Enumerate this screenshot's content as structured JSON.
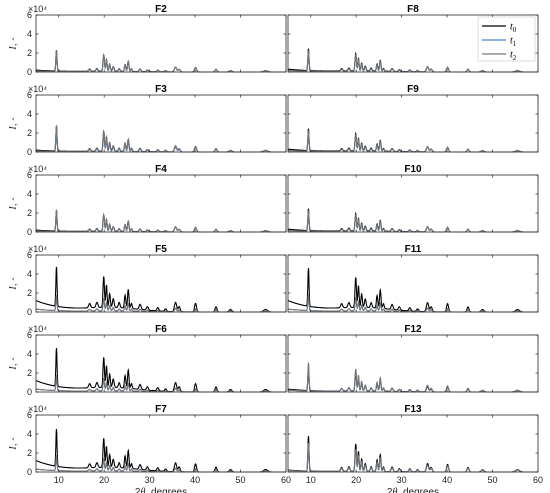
{
  "figure": {
    "xlabel": "2θ, degrees",
    "ylabel": "I, -",
    "exponent": "×10⁴",
    "legend": [
      "t0",
      "t1",
      "t2"
    ]
  },
  "colors": {
    "t0": "#000000",
    "t1": "#4a7fd4",
    "t2": "#777777"
  },
  "chart_data": [
    {
      "type": "line",
      "title": "F2",
      "xlim": [
        5,
        60
      ],
      "ylim": [
        0,
        6
      ],
      "xticks": [
        10,
        20,
        30,
        40,
        50,
        60
      ],
      "yticks": [
        0,
        2,
        4,
        6
      ],
      "xlabel": "",
      "ylabel": "I, -",
      "series": [
        {
          "name": "t0",
          "scale": 0.95,
          "base": 0.2
        },
        {
          "name": "t1",
          "scale": 0.9,
          "base": 0.1
        },
        {
          "name": "t2",
          "scale": 0.95,
          "base": 0.1
        }
      ]
    },
    {
      "type": "line",
      "title": "F8",
      "xlim": [
        5,
        60
      ],
      "ylim": [
        0,
        6
      ],
      "xticks": [
        10,
        20,
        30,
        40,
        50,
        60
      ],
      "yticks": [
        0,
        2,
        4,
        6
      ],
      "xlabel": "",
      "ylabel": "",
      "series": [
        {
          "name": "t0",
          "scale": 1.0,
          "base": 0.3
        },
        {
          "name": "t1",
          "scale": 0.9,
          "base": 0.15
        },
        {
          "name": "t2",
          "scale": 0.95,
          "base": 0.15
        }
      ]
    },
    {
      "type": "line",
      "title": "F3",
      "xlim": [
        5,
        60
      ],
      "ylim": [
        0,
        6
      ],
      "xticks": [
        10,
        20,
        30,
        40,
        50,
        60
      ],
      "yticks": [
        0,
        2,
        4,
        6
      ],
      "xlabel": "",
      "ylabel": "I, -",
      "series": [
        {
          "name": "t0",
          "scale": 1.15,
          "base": 0.2
        },
        {
          "name": "t1",
          "scale": 0.85,
          "base": 0.1
        },
        {
          "name": "t2",
          "scale": 1.2,
          "base": 0.1
        }
      ]
    },
    {
      "type": "line",
      "title": "F9",
      "xlim": [
        5,
        60
      ],
      "ylim": [
        0,
        6
      ],
      "xticks": [
        10,
        20,
        30,
        40,
        50,
        60
      ],
      "yticks": [
        0,
        2,
        4,
        6
      ],
      "xlabel": "",
      "ylabel": "",
      "series": [
        {
          "name": "t0",
          "scale": 1.0,
          "base": 0.3
        },
        {
          "name": "t1",
          "scale": 0.9,
          "base": 0.15
        },
        {
          "name": "t2",
          "scale": 0.95,
          "base": 0.15
        }
      ]
    },
    {
      "type": "line",
      "title": "F4",
      "xlim": [
        5,
        60
      ],
      "ylim": [
        0,
        6
      ],
      "xticks": [
        10,
        20,
        30,
        40,
        50,
        60
      ],
      "yticks": [
        0,
        2,
        4,
        6
      ],
      "xlabel": "",
      "ylabel": "I, -",
      "series": [
        {
          "name": "t0",
          "scale": 0.95,
          "base": 0.2
        },
        {
          "name": "t1",
          "scale": 0.9,
          "base": 0.1
        },
        {
          "name": "t2",
          "scale": 1.0,
          "base": 0.1
        }
      ]
    },
    {
      "type": "line",
      "title": "F10",
      "xlim": [
        5,
        60
      ],
      "ylim": [
        0,
        6
      ],
      "xticks": [
        10,
        20,
        30,
        40,
        50,
        60
      ],
      "yticks": [
        0,
        2,
        4,
        6
      ],
      "xlabel": "",
      "ylabel": "",
      "series": [
        {
          "name": "t0",
          "scale": 1.0,
          "base": 0.3
        },
        {
          "name": "t1",
          "scale": 0.9,
          "base": 0.15
        },
        {
          "name": "t2",
          "scale": 0.95,
          "base": 0.15
        }
      ]
    },
    {
      "type": "line",
      "title": "F5",
      "xlim": [
        5,
        60
      ],
      "ylim": [
        0,
        6
      ],
      "xticks": [
        10,
        20,
        30,
        40,
        50,
        60
      ],
      "yticks": [
        0,
        2,
        4,
        6
      ],
      "xlabel": "",
      "ylabel": "I, -",
      "series": [
        {
          "name": "t0",
          "scale": 1.8,
          "base": 1.2
        },
        {
          "name": "t1",
          "scale": 0.6,
          "base": 0.3
        },
        {
          "name": "t2",
          "scale": 0.7,
          "base": 0.3
        }
      ]
    },
    {
      "type": "line",
      "title": "F11",
      "xlim": [
        5,
        60
      ],
      "ylim": [
        0,
        6
      ],
      "xticks": [
        10,
        20,
        30,
        40,
        50,
        60
      ],
      "yticks": [
        0,
        2,
        4,
        6
      ],
      "xlabel": "",
      "ylabel": "",
      "series": [
        {
          "name": "t0",
          "scale": 1.75,
          "base": 1.2
        },
        {
          "name": "t1",
          "scale": 0.65,
          "base": 0.3
        },
        {
          "name": "t2",
          "scale": 0.75,
          "base": 0.3
        }
      ]
    },
    {
      "type": "line",
      "title": "F6",
      "xlim": [
        5,
        60
      ],
      "ylim": [
        0,
        6
      ],
      "xticks": [
        10,
        20,
        30,
        40,
        50,
        60
      ],
      "yticks": [
        0,
        2,
        4,
        6
      ],
      "xlabel": "",
      "ylabel": "I, -",
      "series": [
        {
          "name": "t0",
          "scale": 1.75,
          "base": 1.2
        },
        {
          "name": "t1",
          "scale": 0.6,
          "base": 0.3
        },
        {
          "name": "t2",
          "scale": 0.7,
          "base": 0.3
        }
      ]
    },
    {
      "type": "line",
      "title": "F12",
      "xlim": [
        5,
        60
      ],
      "ylim": [
        0,
        6
      ],
      "xticks": [
        10,
        20,
        30,
        40,
        50,
        60
      ],
      "yticks": [
        0,
        2,
        4,
        6
      ],
      "xlabel": "",
      "ylabel": "",
      "series": [
        {
          "name": "t0",
          "scale": 1.0,
          "base": 0.3
        },
        {
          "name": "t1",
          "scale": 1.2,
          "base": 0.2
        },
        {
          "name": "t2",
          "scale": 1.3,
          "base": 0.2
        }
      ]
    },
    {
      "type": "line",
      "title": "F7",
      "xlim": [
        5,
        60
      ],
      "ylim": [
        0,
        6
      ],
      "xticks": [
        10,
        20,
        30,
        40,
        50,
        60
      ],
      "yticks": [
        0,
        2,
        4,
        6
      ],
      "xlabel": "2θ, degrees",
      "ylabel": "I, -",
      "series": [
        {
          "name": "t0",
          "scale": 1.7,
          "base": 1.2
        },
        {
          "name": "t1",
          "scale": 0.6,
          "base": 0.3
        },
        {
          "name": "t2",
          "scale": 0.7,
          "base": 0.3
        }
      ]
    },
    {
      "type": "line",
      "title": "F13",
      "xlim": [
        5,
        60
      ],
      "ylim": [
        0,
        6
      ],
      "xticks": [
        10,
        20,
        30,
        40,
        50,
        60
      ],
      "yticks": [
        0,
        2,
        4,
        6
      ],
      "xlabel": "2θ, degrees",
      "ylabel": "",
      "series": [
        {
          "name": "t0",
          "scale": 1.6,
          "base": 0.2
        },
        {
          "name": "t1",
          "scale": 1.2,
          "base": 0.15
        },
        {
          "name": "t2",
          "scale": 1.3,
          "base": 0.15
        }
      ]
    }
  ]
}
